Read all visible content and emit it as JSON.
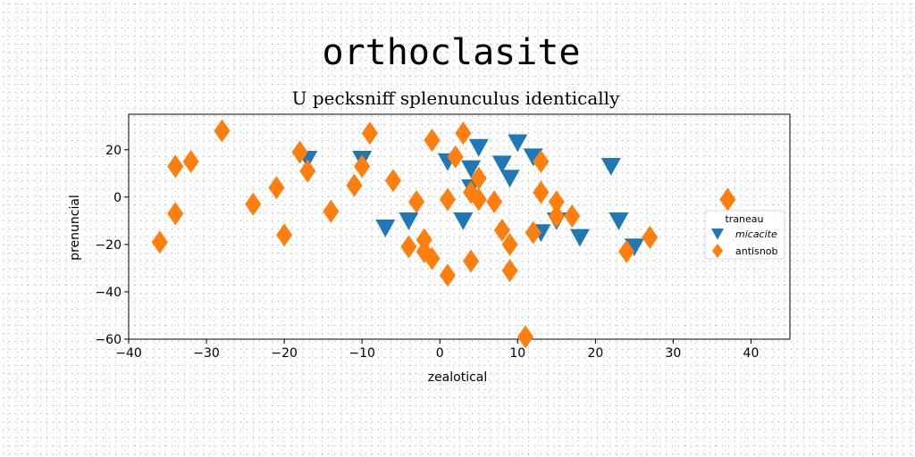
{
  "chart_data": {
    "type": "scatter",
    "title": "orthoclasite",
    "subtitle": "U pecksniff splenunculus identically",
    "xlabel": "zealotical",
    "ylabel": "prenuncial",
    "xlim": [
      -40,
      45
    ],
    "ylim": [
      -60,
      35
    ],
    "xticks": [
      -40,
      -30,
      -20,
      -10,
      0,
      10,
      20,
      30,
      40
    ],
    "yticks": [
      -60,
      -40,
      -20,
      0,
      20
    ],
    "grid": false,
    "legend": {
      "title": "traneau",
      "placement": "right",
      "entries": [
        "micacite",
        "antisnob"
      ]
    },
    "series": [
      {
        "name": "micacite",
        "marker": "triangle-down",
        "color": "#1f77b4",
        "points": [
          [
            -17,
            16
          ],
          [
            -10,
            16
          ],
          [
            -7,
            -13
          ],
          [
            -4,
            -10
          ],
          [
            1,
            15
          ],
          [
            3,
            -10
          ],
          [
            4,
            12
          ],
          [
            4,
            4
          ],
          [
            5,
            21
          ],
          [
            8,
            14
          ],
          [
            9,
            8
          ],
          [
            10,
            23
          ],
          [
            12,
            17
          ],
          [
            13,
            -15
          ],
          [
            15,
            -10
          ],
          [
            18,
            -17
          ],
          [
            22,
            13
          ],
          [
            23,
            -10
          ],
          [
            25,
            -21
          ]
        ]
      },
      {
        "name": "antisnob",
        "color": "#ff7f0e",
        "marker": "diamond",
        "points": [
          [
            -36,
            -19
          ],
          [
            -34,
            13
          ],
          [
            -34,
            -7
          ],
          [
            -32,
            15
          ],
          [
            -28,
            28
          ],
          [
            -24,
            -3
          ],
          [
            -21,
            4
          ],
          [
            -20,
            -16
          ],
          [
            -18,
            19
          ],
          [
            -17,
            11
          ],
          [
            -14,
            -6
          ],
          [
            -11,
            5
          ],
          [
            -10,
            13
          ],
          [
            -9,
            27
          ],
          [
            -6,
            7
          ],
          [
            -4,
            -21
          ],
          [
            -3,
            -2
          ],
          [
            -2,
            -18
          ],
          [
            -2,
            -23
          ],
          [
            -1,
            24
          ],
          [
            -1,
            -26
          ],
          [
            1,
            -33
          ],
          [
            1,
            -1
          ],
          [
            2,
            17
          ],
          [
            3,
            27
          ],
          [
            4,
            2
          ],
          [
            4,
            -27
          ],
          [
            5,
            -1
          ],
          [
            5,
            8
          ],
          [
            7,
            -2
          ],
          [
            8,
            -14
          ],
          [
            9,
            -20
          ],
          [
            9,
            -31
          ],
          [
            11,
            -59
          ],
          [
            12,
            -15
          ],
          [
            13,
            2
          ],
          [
            13,
            15
          ],
          [
            15,
            -2
          ],
          [
            15,
            -8
          ],
          [
            17,
            -8
          ],
          [
            24,
            -23
          ],
          [
            27,
            -17
          ],
          [
            37,
            -1
          ]
        ]
      }
    ]
  }
}
